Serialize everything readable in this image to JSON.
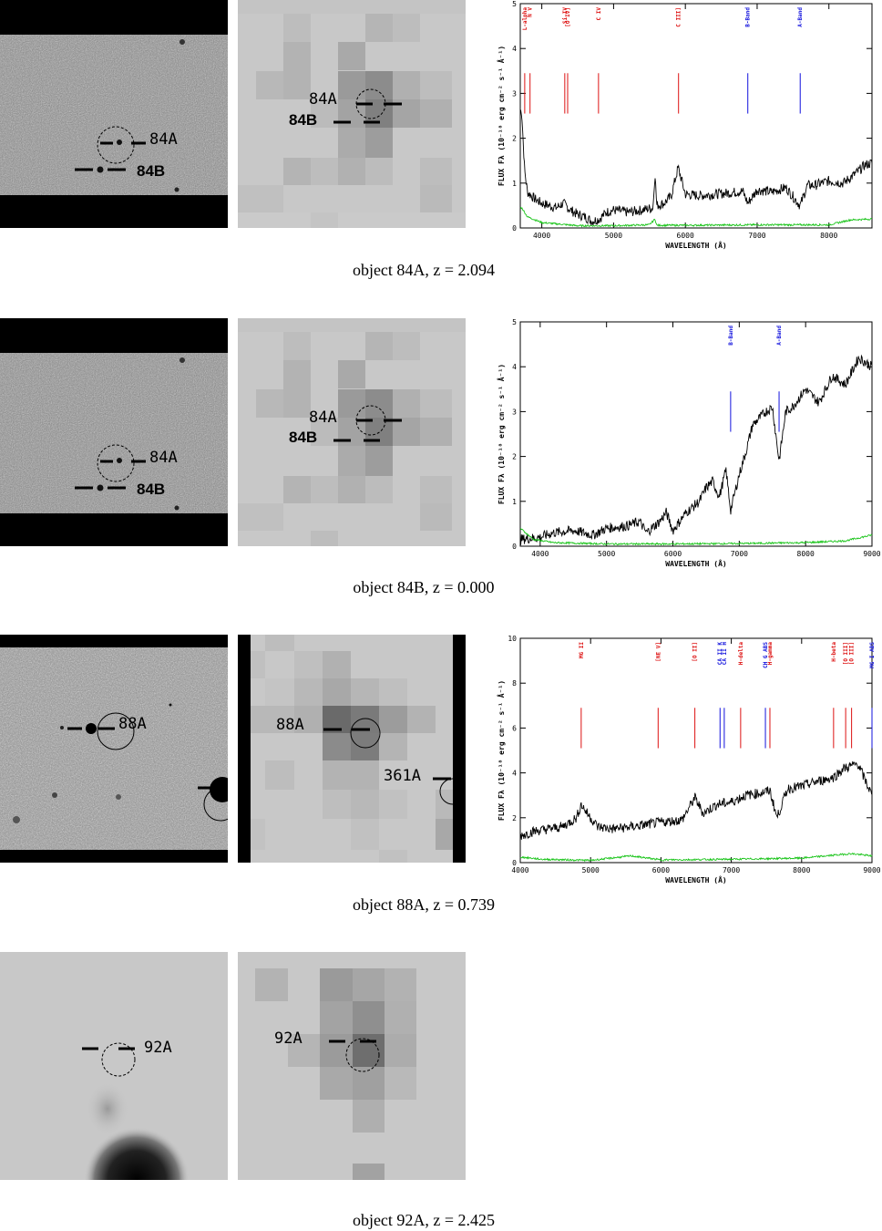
{
  "figures": [
    {
      "caption": "object 84A, z = 2.094",
      "image_label_primary": "84A",
      "image_label_secondary": "84B",
      "cutout_label_primary": "84A",
      "cutout_label_secondary": "84B",
      "spectrum": {
        "type": "line",
        "ylabel": "FLUX Fλ (10⁻¹⁸ erg cm⁻² s⁻¹ Å⁻¹)",
        "xlabel": "WAVELENGTH (Å)",
        "xlim": [
          3700,
          8600
        ],
        "ylim": [
          0,
          5
        ],
        "xticks": [
          4000,
          5000,
          6000,
          7000,
          8000
        ],
        "yticks": [
          0,
          1,
          2,
          3,
          4,
          5
        ],
        "lines": [
          {
            "name": "L-alpha",
            "x": 3762,
            "color": "#d11"
          },
          {
            "name": "N V",
            "x": 3836,
            "color": "#d11"
          },
          {
            "name": "Si IV",
            "x": 4320,
            "color": "#d11"
          },
          {
            "name": "[O IV]",
            "x": 4360,
            "color": "#d11"
          },
          {
            "name": "C IV",
            "x": 4790,
            "color": "#d11"
          },
          {
            "name": "C III]",
            "x": 5905,
            "color": "#d11"
          },
          {
            "name": "B-Band",
            "x": 6870,
            "color": "#11d"
          },
          {
            "name": "A-Band",
            "x": 7600,
            "color": "#11d"
          }
        ],
        "flux": [
          [
            3720,
            2.6
          ],
          [
            3760,
            1.3
          ],
          [
            3800,
            0.8
          ],
          [
            3900,
            0.65
          ],
          [
            4000,
            0.55
          ],
          [
            4100,
            0.5
          ],
          [
            4200,
            0.45
          ],
          [
            4300,
            0.55
          ],
          [
            4400,
            0.4
          ],
          [
            4500,
            0.3
          ],
          [
            4600,
            0.25
          ],
          [
            4700,
            0.15
          ],
          [
            4800,
            0.2
          ],
          [
            4900,
            0.35
          ],
          [
            5000,
            0.4
          ],
          [
            5200,
            0.35
          ],
          [
            5400,
            0.4
          ],
          [
            5550,
            0.45
          ],
          [
            5577,
            1.25
          ],
          [
            5600,
            0.5
          ],
          [
            5700,
            0.55
          ],
          [
            5800,
            0.7
          ],
          [
            5900,
            1.35
          ],
          [
            6000,
            0.75
          ],
          [
            6200,
            0.72
          ],
          [
            6400,
            0.75
          ],
          [
            6600,
            0.78
          ],
          [
            6800,
            0.82
          ],
          [
            6870,
            0.55
          ],
          [
            7000,
            0.85
          ],
          [
            7200,
            0.8
          ],
          [
            7400,
            0.9
          ],
          [
            7600,
            0.5
          ],
          [
            7700,
            0.95
          ],
          [
            7800,
            0.95
          ],
          [
            8000,
            1.05
          ],
          [
            8200,
            1.0
          ],
          [
            8400,
            1.25
          ],
          [
            8500,
            1.4
          ],
          [
            8600,
            1.45
          ]
        ],
        "error": [
          [
            3720,
            0.45
          ],
          [
            3800,
            0.25
          ],
          [
            4000,
            0.12
          ],
          [
            4500,
            0.05
          ],
          [
            5000,
            0.05
          ],
          [
            5500,
            0.07
          ],
          [
            5577,
            0.2
          ],
          [
            5600,
            0.06
          ],
          [
            6000,
            0.06
          ],
          [
            7000,
            0.07
          ],
          [
            8000,
            0.07
          ],
          [
            8300,
            0.18
          ],
          [
            8600,
            0.2
          ]
        ]
      }
    },
    {
      "caption": "object 84B, z = 0.000",
      "image_label_primary": "84A",
      "image_label_secondary": "84B",
      "cutout_label_primary": "84A",
      "cutout_label_secondary": "84B",
      "spectrum": {
        "type": "line",
        "ylabel": "FLUX Fλ (10⁻¹⁸ erg cm⁻² s⁻¹ Å⁻¹)",
        "xlabel": "WAVELENGTH (Å)",
        "xlim": [
          3700,
          9000
        ],
        "ylim": [
          0,
          5
        ],
        "xticks": [
          4000,
          5000,
          6000,
          7000,
          8000,
          9000
        ],
        "yticks": [
          0,
          1,
          2,
          3,
          4,
          5
        ],
        "lines": [
          {
            "name": "B-Band",
            "x": 6870,
            "color": "#11d"
          },
          {
            "name": "A-Band",
            "x": 7600,
            "color": "#11d"
          }
        ],
        "flux": [
          [
            3700,
            0.15
          ],
          [
            4000,
            0.2
          ],
          [
            4200,
            0.3
          ],
          [
            4500,
            0.35
          ],
          [
            4800,
            0.25
          ],
          [
            5000,
            0.4
          ],
          [
            5300,
            0.45
          ],
          [
            5500,
            0.55
          ],
          [
            5600,
            0.3
          ],
          [
            5800,
            0.55
          ],
          [
            5900,
            0.75
          ],
          [
            6000,
            0.35
          ],
          [
            6200,
            0.75
          ],
          [
            6400,
            1.0
          ],
          [
            6500,
            1.3
          ],
          [
            6600,
            1.45
          ],
          [
            6700,
            1.1
          ],
          [
            6800,
            1.7
          ],
          [
            6870,
            0.8
          ],
          [
            7000,
            1.6
          ],
          [
            7100,
            2.1
          ],
          [
            7200,
            2.7
          ],
          [
            7400,
            3.0
          ],
          [
            7500,
            3.1
          ],
          [
            7600,
            1.9
          ],
          [
            7700,
            3.0
          ],
          [
            7800,
            3.1
          ],
          [
            8000,
            3.5
          ],
          [
            8200,
            3.2
          ],
          [
            8400,
            3.8
          ],
          [
            8600,
            3.6
          ],
          [
            8800,
            4.2
          ],
          [
            9000,
            4.0
          ]
        ],
        "error": [
          [
            3700,
            0.4
          ],
          [
            3900,
            0.15
          ],
          [
            4200,
            0.08
          ],
          [
            5000,
            0.05
          ],
          [
            6000,
            0.05
          ],
          [
            7000,
            0.06
          ],
          [
            8000,
            0.08
          ],
          [
            8600,
            0.12
          ],
          [
            9000,
            0.25
          ]
        ]
      }
    },
    {
      "caption": "object 88A, z = 0.739",
      "image_label_primary": "88A",
      "cutout_label_primary": "88A",
      "cutout_label_secondary": "361A",
      "spectrum": {
        "type": "line",
        "ylabel": "FLUX Fλ (10⁻¹⁸ erg cm⁻² s⁻¹ Å⁻¹)",
        "xlabel": "WAVELENGTH (Å)",
        "xlim": [
          4000,
          9000
        ],
        "ylim": [
          0,
          10
        ],
        "xticks": [
          4000,
          5000,
          6000,
          7000,
          8000,
          9000
        ],
        "yticks": [
          0,
          2,
          4,
          6,
          8,
          10
        ],
        "lines": [
          {
            "name": "MG II",
            "x": 4866,
            "color": "#d11"
          },
          {
            "name": "[NE V]",
            "x": 5960,
            "color": "#d11"
          },
          {
            "name": "[O II]",
            "x": 6482,
            "color": "#d11"
          },
          {
            "name": "CA II K",
            "x": 6840,
            "color": "#11d"
          },
          {
            "name": "CA II H",
            "x": 6900,
            "color": "#11d"
          },
          {
            "name": "H-delta",
            "x": 7133,
            "color": "#d11"
          },
          {
            "name": "CH G ABS",
            "x": 7485,
            "color": "#11d"
          },
          {
            "name": "H-gamma",
            "x": 7549,
            "color": "#d11"
          },
          {
            "name": "H-beta",
            "x": 8454,
            "color": "#d11"
          },
          {
            "name": "[O III]",
            "x": 8626,
            "color": "#d11"
          },
          {
            "name": "[O III]",
            "x": 8710,
            "color": "#d11"
          },
          {
            "name": "MG I ABS",
            "x": 9000,
            "color": "#11d"
          }
        ],
        "flux": [
          [
            4000,
            1.2
          ],
          [
            4200,
            1.4
          ],
          [
            4400,
            1.5
          ],
          [
            4600,
            1.6
          ],
          [
            4800,
            2.0
          ],
          [
            4866,
            2.6
          ],
          [
            4950,
            2.2
          ],
          [
            5100,
            1.6
          ],
          [
            5300,
            1.5
          ],
          [
            5600,
            1.6
          ],
          [
            6000,
            1.8
          ],
          [
            6300,
            1.9
          ],
          [
            6482,
            2.9
          ],
          [
            6600,
            2.2
          ],
          [
            6800,
            2.6
          ],
          [
            7000,
            2.7
          ],
          [
            7200,
            3.0
          ],
          [
            7400,
            3.1
          ],
          [
            7550,
            3.2
          ],
          [
            7650,
            2.0
          ],
          [
            7800,
            3.3
          ],
          [
            8000,
            3.4
          ],
          [
            8200,
            3.6
          ],
          [
            8454,
            3.8
          ],
          [
            8600,
            4.2
          ],
          [
            8800,
            4.4
          ],
          [
            9000,
            3.0
          ]
        ],
        "error": [
          [
            4000,
            0.25
          ],
          [
            4300,
            0.15
          ],
          [
            5000,
            0.1
          ],
          [
            5577,
            0.3
          ],
          [
            6000,
            0.12
          ],
          [
            7000,
            0.15
          ],
          [
            8000,
            0.2
          ],
          [
            8700,
            0.4
          ],
          [
            9000,
            0.3
          ]
        ]
      }
    },
    {
      "caption": "object 92A, z = 2.425",
      "image_label_primary": "92A",
      "cutout_label_primary": "92A"
    }
  ]
}
